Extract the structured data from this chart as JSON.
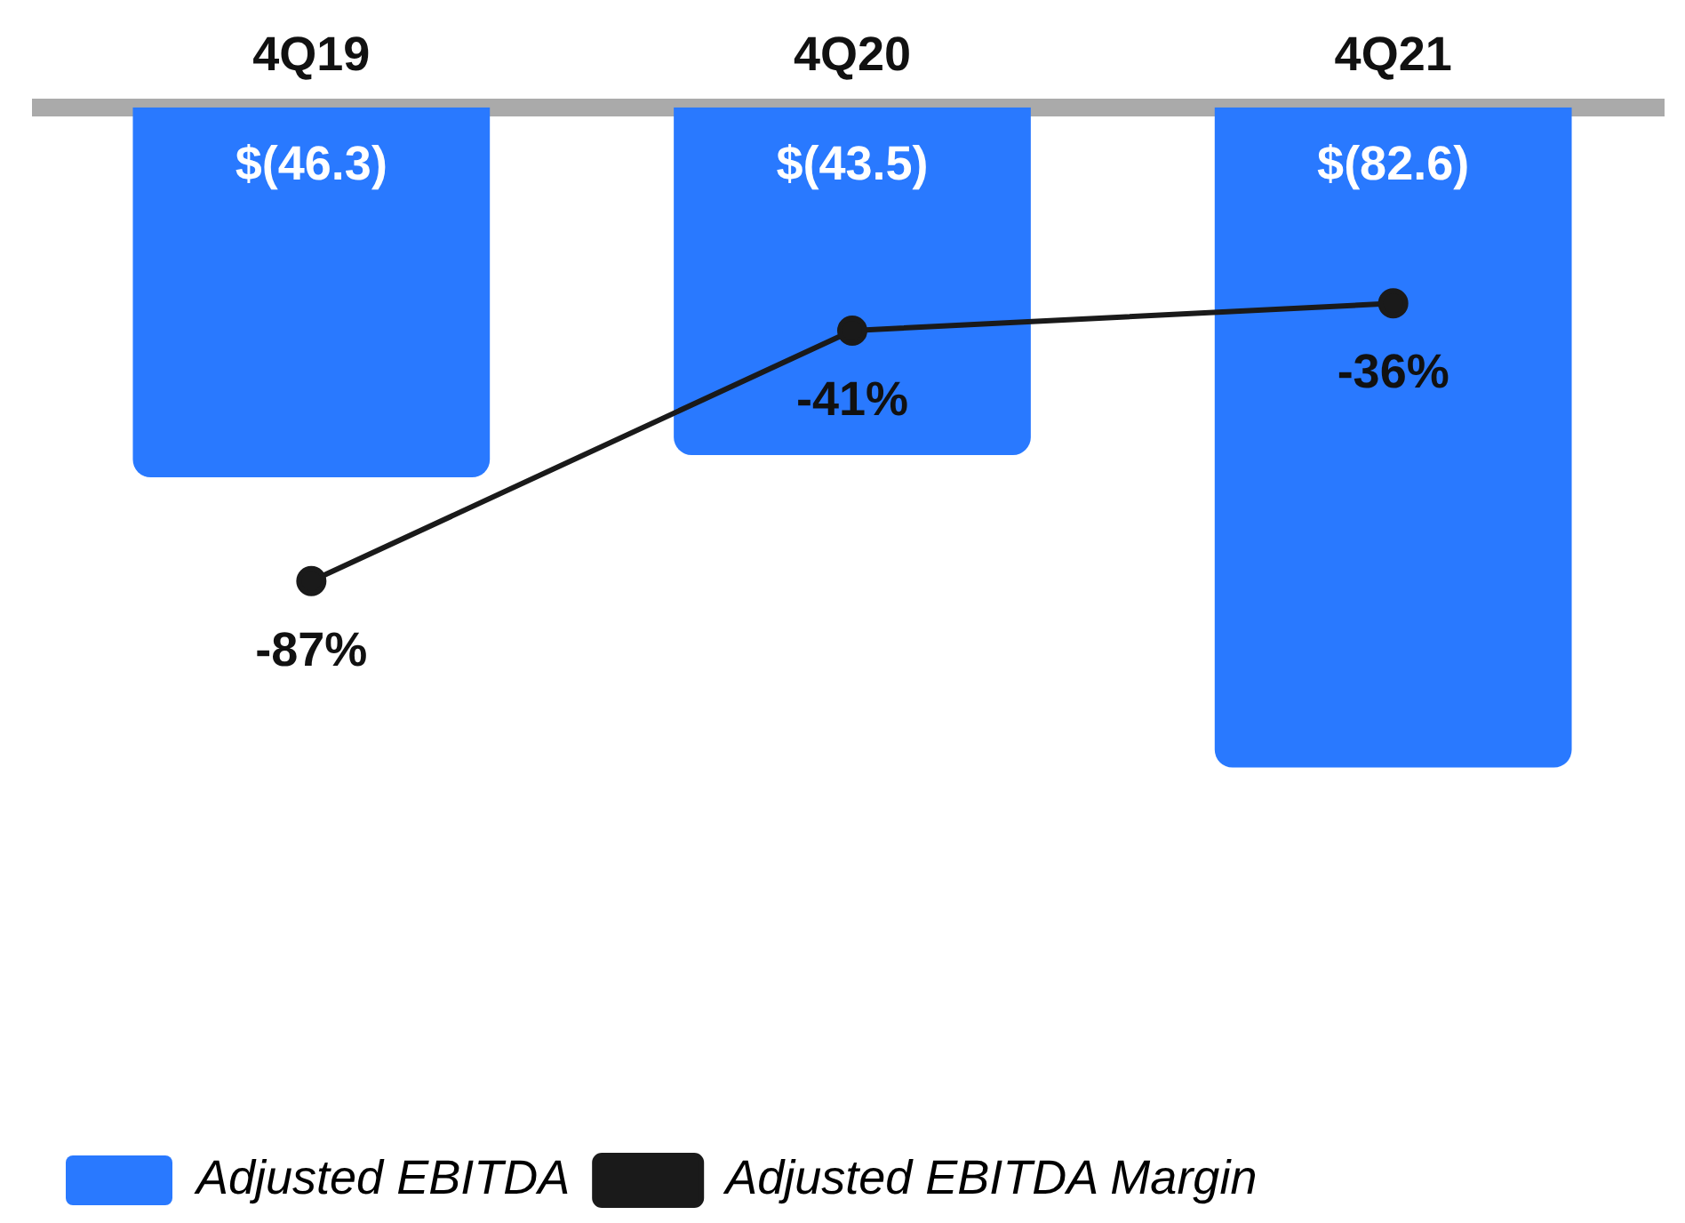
{
  "chart_data": {
    "type": "bar",
    "categories": [
      "4Q19",
      "4Q20",
      "4Q21"
    ],
    "series": [
      {
        "name": "Adjusted EBITDA",
        "color": "#2979ff",
        "values": [
          -46.3,
          -43.5,
          -82.6
        ],
        "value_labels": [
          "$(46.3)",
          "$(43.5)",
          "$(82.6)"
        ]
      },
      {
        "name": "Adjusted EBITDA Margin",
        "type": "line",
        "axis": "y2",
        "color": "#1a1a1a",
        "values": [
          -87,
          -41,
          -36
        ],
        "value_labels": [
          "-87%",
          "-41%",
          "-36%"
        ]
      }
    ],
    "tick_labels": "x",
    "grid": false,
    "legend": "bottom left",
    "marker": "circle",
    "line_style": "solid"
  }
}
